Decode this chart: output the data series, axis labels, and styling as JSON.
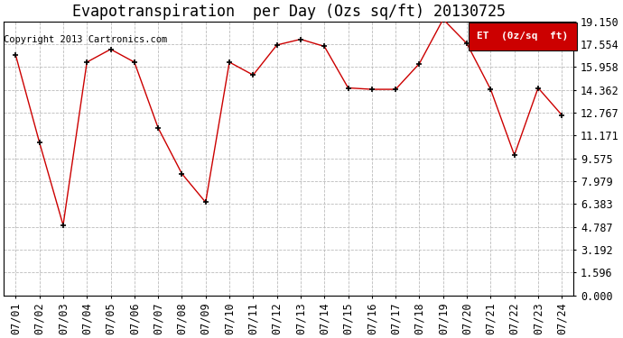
{
  "title": "Evapotranspiration  per Day (Ozs sq/ft) 20130725",
  "copyright": "Copyright 2013 Cartronics.com",
  "legend_label": "ET  (0z/sq  ft)",
  "x_labels": [
    "07/01",
    "07/02",
    "07/03",
    "07/04",
    "07/05",
    "07/06",
    "07/07",
    "07/08",
    "07/09",
    "07/10",
    "07/11",
    "07/12",
    "07/13",
    "07/14",
    "07/15",
    "07/16",
    "07/17",
    "07/18",
    "07/19",
    "07/20",
    "07/21",
    "07/22",
    "07/23",
    "07/24"
  ],
  "y_values": [
    16.8,
    10.7,
    4.9,
    16.3,
    17.2,
    16.3,
    11.7,
    8.5,
    6.5,
    16.3,
    15.4,
    17.5,
    17.9,
    17.4,
    14.5,
    14.4,
    14.4,
    16.2,
    19.3,
    17.6,
    14.4,
    9.8,
    14.5,
    12.6
  ],
  "y_ticks": [
    0.0,
    1.596,
    3.192,
    4.787,
    6.383,
    7.979,
    9.575,
    11.171,
    12.767,
    14.362,
    15.958,
    17.554,
    19.15
  ],
  "y_min": 0.0,
  "y_max": 19.15,
  "line_color": "#cc0000",
  "marker_color": "#000000",
  "bg_color": "#ffffff",
  "grid_color": "#bbbbbb",
  "legend_bg": "#cc0000",
  "legend_text_color": "#ffffff",
  "title_fontsize": 12,
  "copyright_fontsize": 7.5,
  "tick_fontsize": 8.5,
  "legend_fontsize": 8
}
